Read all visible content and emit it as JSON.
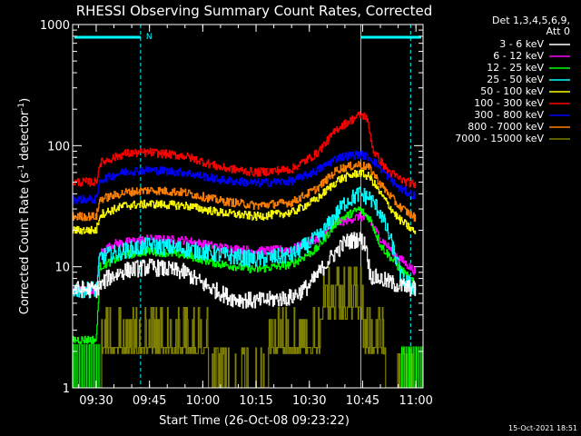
{
  "chart_data": {
    "type": "line",
    "title": "RHESSI Observing Summary Count Rates, Corrected",
    "xlabel": "Start Time (26-Oct-08 09:23:22)",
    "ylabel_main": "Corrected Count Rate (s",
    "ylabel_sup1": "-1",
    "ylabel_mid": " detector",
    "ylabel_sup2": "-1",
    "ylabel_end": ")",
    "yscale": "log",
    "ylim": [
      1,
      1000
    ],
    "xlim": [
      "09:23:22",
      "11:02:00"
    ],
    "x_ticks": [
      "09:30",
      "09:45",
      "10:00",
      "10:15",
      "10:30",
      "10:45",
      "11:00"
    ],
    "y_ticks": [
      "1",
      "10",
      "100",
      "1000"
    ],
    "legend_header": [
      "Det 1,3,4,5,6,9,",
      "Att 0"
    ],
    "attenuator_flag": "N",
    "timestamp": "15-Oct-2021 18:51",
    "vertical_markers": [
      "09:42:30",
      "10:44:30",
      "10:58:30"
    ],
    "series": [
      {
        "name": "3 - 6 keV",
        "color": "#ffffff",
        "points": [
          [
            "09:23:22",
            6.5
          ],
          [
            "09:30",
            6.5
          ],
          [
            "09:31",
            6.8
          ],
          [
            "09:33",
            8
          ],
          [
            "09:38",
            9.3
          ],
          [
            "09:45",
            10
          ],
          [
            "09:55",
            9
          ],
          [
            "10:00",
            7.2
          ],
          [
            "10:08",
            5.5
          ],
          [
            "10:15",
            5.2
          ],
          [
            "10:25",
            5.6
          ],
          [
            "10:30",
            7
          ],
          [
            "10:35",
            11
          ],
          [
            "10:40",
            16
          ],
          [
            "10:44",
            17
          ],
          [
            "10:46",
            15
          ],
          [
            "10:47",
            8.5
          ],
          [
            "10:55",
            7
          ],
          [
            "11:00",
            6.5
          ]
        ]
      },
      {
        "name": "6 - 12 keV",
        "color": "#ff00ff",
        "points": [
          [
            "09:23:22",
            6.5
          ],
          [
            "09:30",
            6.5
          ],
          [
            "09:31",
            13
          ],
          [
            "09:35",
            15.5
          ],
          [
            "09:45",
            17
          ],
          [
            "09:55",
            16.5
          ],
          [
            "10:05",
            14.5
          ],
          [
            "10:15",
            13.5
          ],
          [
            "10:25",
            14
          ],
          [
            "10:32",
            17
          ],
          [
            "10:38",
            23
          ],
          [
            "10:44",
            26
          ],
          [
            "10:47",
            24
          ],
          [
            "10:50",
            17
          ],
          [
            "10:55",
            12
          ],
          [
            "11:00",
            9
          ]
        ]
      },
      {
        "name": "12 - 25 keV",
        "color": "#00ff00",
        "points": [
          [
            "09:23:22",
            2.5
          ],
          [
            "09:30",
            2.5
          ],
          [
            "09:31",
            10
          ],
          [
            "09:38",
            12.5
          ],
          [
            "09:45",
            13.5
          ],
          [
            "09:55",
            12.5
          ],
          [
            "10:05",
            10.5
          ],
          [
            "10:15",
            9.5
          ],
          [
            "10:25",
            10.5
          ],
          [
            "10:32",
            14
          ],
          [
            "10:38",
            24
          ],
          [
            "10:44",
            30
          ],
          [
            "10:47",
            25
          ],
          [
            "10:50",
            15
          ],
          [
            "10:55",
            10
          ],
          [
            "11:00",
            7
          ]
        ]
      },
      {
        "name": "25 - 50 keV",
        "color": "#00ffff",
        "points": [
          [
            "09:23:22",
            6.5
          ],
          [
            "09:30",
            6.5
          ],
          [
            "09:31",
            12
          ],
          [
            "09:40",
            14
          ],
          [
            "09:45",
            15
          ],
          [
            "09:55",
            14
          ],
          [
            "10:05",
            12.5
          ],
          [
            "10:15",
            11.5
          ],
          [
            "10:25",
            12.5
          ],
          [
            "10:33",
            18
          ],
          [
            "10:40",
            34
          ],
          [
            "10:44",
            40
          ],
          [
            "10:47",
            37
          ],
          [
            "10:50",
            28
          ],
          [
            "10:53",
            16
          ],
          [
            "10:56",
            8
          ],
          [
            "11:00",
            6.5
          ]
        ]
      },
      {
        "name": "50 - 100 keV",
        "color": "#ffff00",
        "points": [
          [
            "09:23:22",
            20
          ],
          [
            "09:30",
            20
          ],
          [
            "09:31",
            27
          ],
          [
            "09:38",
            32
          ],
          [
            "09:45",
            33
          ],
          [
            "09:55",
            32
          ],
          [
            "10:05",
            28
          ],
          [
            "10:15",
            26
          ],
          [
            "10:25",
            28
          ],
          [
            "10:32",
            36
          ],
          [
            "10:38",
            52
          ],
          [
            "10:44",
            60
          ],
          [
            "10:47",
            55
          ],
          [
            "10:50",
            40
          ],
          [
            "10:55",
            25
          ],
          [
            "11:00",
            19
          ]
        ]
      },
      {
        "name": "100 - 300 keV",
        "color": "#ff0000",
        "points": [
          [
            "09:23:22",
            50
          ],
          [
            "09:30",
            50
          ],
          [
            "09:31",
            72
          ],
          [
            "09:38",
            86
          ],
          [
            "09:45",
            88
          ],
          [
            "09:55",
            82
          ],
          [
            "10:05",
            66
          ],
          [
            "10:15",
            60
          ],
          [
            "10:25",
            64
          ],
          [
            "10:32",
            86
          ],
          [
            "10:38",
            140
          ],
          [
            "10:44",
            178
          ],
          [
            "10:46",
            175
          ],
          [
            "10:48",
            90
          ],
          [
            "10:52",
            62
          ],
          [
            "10:56",
            52
          ],
          [
            "11:00",
            47
          ]
        ]
      },
      {
        "name": "300 - 800 keV",
        "color": "#0000ff",
        "points": [
          [
            "09:23:22",
            36
          ],
          [
            "09:30",
            36
          ],
          [
            "09:31",
            52
          ],
          [
            "09:38",
            61
          ],
          [
            "09:45",
            63
          ],
          [
            "09:55",
            60
          ],
          [
            "10:05",
            52
          ],
          [
            "10:15",
            49
          ],
          [
            "10:25",
            51
          ],
          [
            "10:32",
            62
          ],
          [
            "10:38",
            80
          ],
          [
            "10:44",
            85
          ],
          [
            "10:47",
            80
          ],
          [
            "10:50",
            65
          ],
          [
            "10:55",
            45
          ],
          [
            "11:00",
            38
          ]
        ]
      },
      {
        "name": "800 - 7000 keV",
        "color": "#ff8000",
        "points": [
          [
            "09:23:22",
            26
          ],
          [
            "09:30",
            26
          ],
          [
            "09:31",
            36
          ],
          [
            "09:38",
            41
          ],
          [
            "09:45",
            43
          ],
          [
            "09:55",
            41
          ],
          [
            "10:05",
            35
          ],
          [
            "10:15",
            32
          ],
          [
            "10:25",
            34
          ],
          [
            "10:32",
            44
          ],
          [
            "10:38",
            64
          ],
          [
            "10:44",
            70
          ],
          [
            "10:47",
            65
          ],
          [
            "10:50",
            48
          ],
          [
            "10:55",
            32
          ],
          [
            "11:00",
            25
          ]
        ]
      },
      {
        "name": "7000 - 15000 keV",
        "color": "#808000",
        "points": [
          [
            "09:31",
            1
          ],
          [
            "09:32",
            2.2
          ],
          [
            "09:40",
            2.1
          ],
          [
            "09:50",
            2.1
          ],
          [
            "10:00",
            1.5
          ],
          [
            "10:10",
            1.3
          ],
          [
            "10:20",
            1.5
          ],
          [
            "10:30",
            2.4
          ],
          [
            "10:36",
            4.2
          ],
          [
            "10:42",
            4.7
          ],
          [
            "10:46",
            2.8
          ],
          [
            "10:50",
            1.5
          ],
          [
            "10:56",
            1.3
          ],
          [
            "11:00",
            1.2
          ]
        ]
      }
    ]
  }
}
